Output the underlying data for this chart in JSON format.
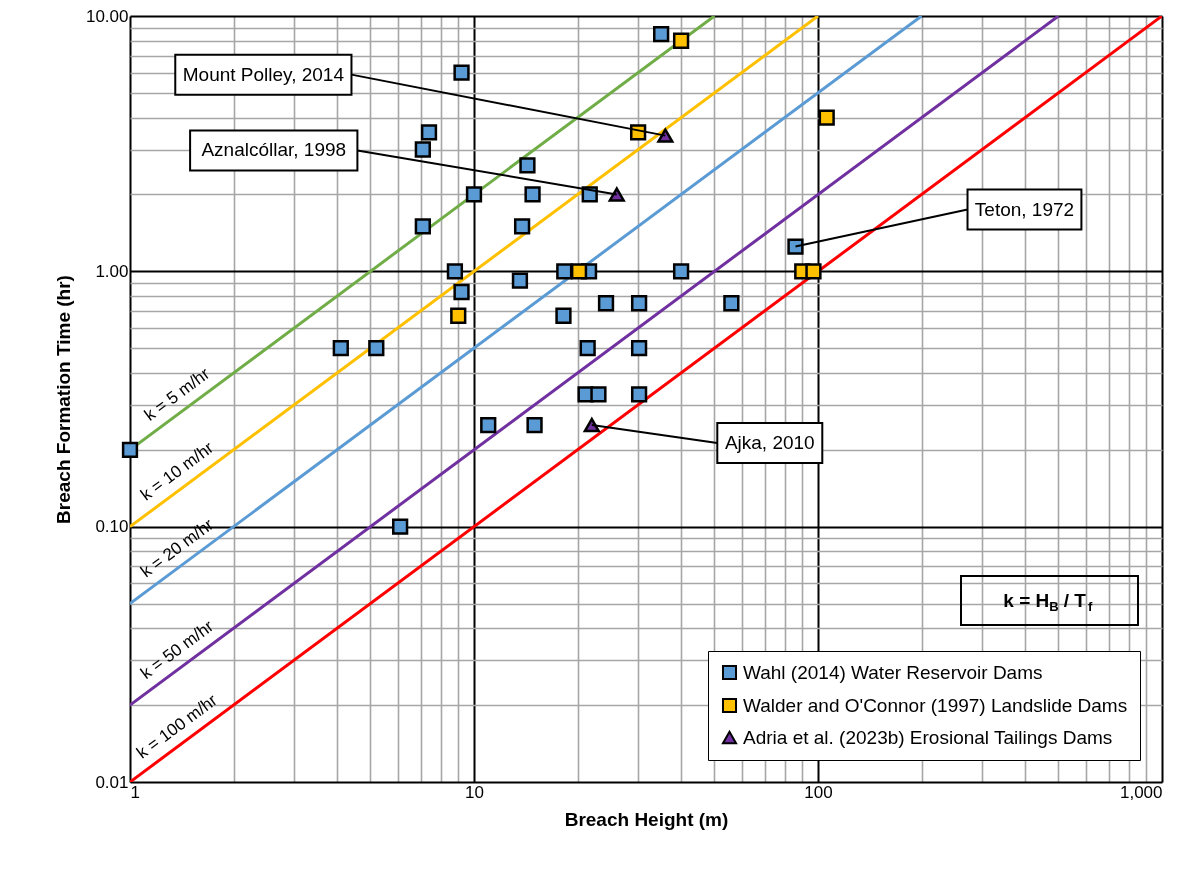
{
  "chart_data": {
    "type": "scatter",
    "xlabel": "Breach Height (m)",
    "ylabel": "Breach Formation Time (hr)",
    "xlim": [
      1,
      1000
    ],
    "xticks": [
      1,
      10,
      100,
      {
        "value": 1000,
        "label": "1,000"
      }
    ],
    "ylim": [
      0.01,
      10
    ],
    "yticks": [
      {
        "value": 0.01,
        "label": "0.01"
      },
      {
        "value": 0.1,
        "label": "0.10"
      },
      {
        "value": 1,
        "label": "1.00"
      },
      {
        "value": 10,
        "label": "10.00"
      }
    ],
    "log": "xy",
    "grid": true,
    "legend": "bottom right",
    "series": [
      {
        "name": "k = 5 m/hr",
        "type": "line",
        "color": "#70ad47",
        "marker": "none",
        "x": [
          1,
          50
        ],
        "values": [
          0.2,
          10
        ]
      },
      {
        "name": "k = 10 m/hr",
        "type": "line",
        "color": "#ffc000",
        "marker": "none",
        "x": [
          1,
          100
        ],
        "values": [
          0.1,
          10
        ]
      },
      {
        "name": "k = 20 m/hr",
        "type": "line",
        "color": "#5b9bd5",
        "marker": "none",
        "x": [
          1,
          200
        ],
        "values": [
          0.05,
          10
        ]
      },
      {
        "name": "k = 50 m/hr",
        "type": "line",
        "color": "#7030a0",
        "marker": "none",
        "x": [
          1,
          500
        ],
        "values": [
          0.02,
          10
        ]
      },
      {
        "name": "k = 100 m/hr",
        "type": "line",
        "color": "#ff0000",
        "marker": "none",
        "x": [
          1,
          1000
        ],
        "values": [
          0.01,
          10
        ]
      },
      {
        "name": "Wahl (2014) Water Reservoir Dams",
        "color": "#5b9bd5",
        "marker": "square",
        "x": [
          1,
          35,
          9.2,
          7.4,
          7.1,
          14.3,
          10,
          14.8,
          21.7,
          7.1,
          13.8,
          8.8,
          9.2,
          13.6,
          18.3,
          21.6,
          40,
          18.2,
          24.2,
          30.2,
          56,
          86,
          4.1,
          5.2,
          21.4,
          30.2,
          21.1,
          23,
          30.2,
          11,
          15,
          6.1
        ],
        "values": [
          0.2,
          8.5,
          6,
          3.5,
          3.0,
          2.6,
          2,
          2,
          2,
          1.5,
          1.5,
          1,
          0.83,
          0.92,
          1,
          1,
          1,
          0.67,
          0.75,
          0.75,
          0.75,
          1.25,
          0.5,
          0.5,
          0.5,
          0.5,
          0.33,
          0.33,
          0.33,
          0.25,
          0.25,
          0.1
        ]
      },
      {
        "name": "Walder and O'Connor (1997) Landslide Dams",
        "color": "#ffc000",
        "marker": "square",
        "x": [
          40,
          30,
          106,
          20.2,
          9,
          90,
          97
        ],
        "values": [
          8,
          3.5,
          4,
          1,
          0.67,
          1,
          1
        ]
      },
      {
        "name": "Adria et al. (2023b) Erosional Tailings Dams",
        "color": "#7030a0",
        "marker": "triangle",
        "x": [
          36,
          26,
          22
        ],
        "values": [
          3.4,
          2,
          0.25
        ]
      }
    ],
    "annotations": [
      {
        "text": "Mount Polley, 2014",
        "x": 36,
        "y": 3.4
      },
      {
        "text": "Aznalcóllar, 1998",
        "x": 26,
        "y": 2
      },
      {
        "text": "Teton, 1972",
        "x": 86,
        "y": 1.25
      },
      {
        "text": "Ajka, 2010",
        "x": 22,
        "y": 0.25
      },
      "k = H$_{B}$ / T$_{f}$"
    ]
  }
}
